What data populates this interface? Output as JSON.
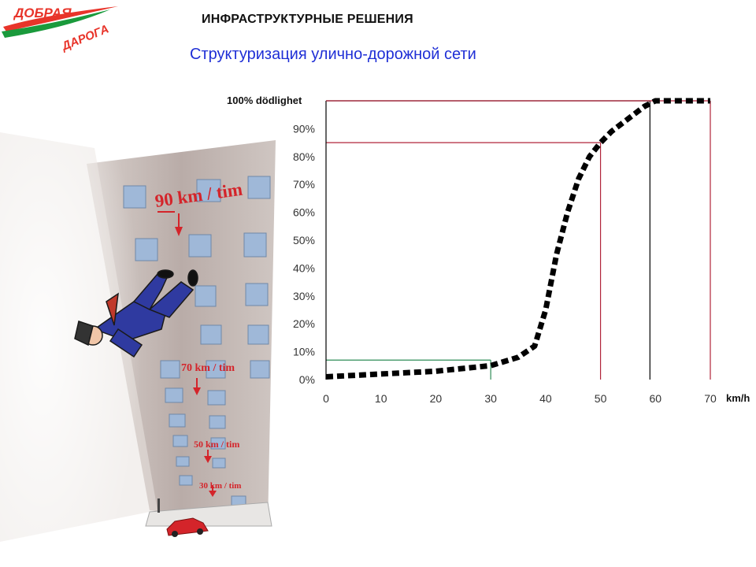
{
  "header": {
    "logo_line1": "ДОБРАЯ",
    "logo_line2": "ДАРОГА",
    "title": "ИНФРАСТРУКТУРНЫЕ РЕШЕНИЯ",
    "subtitle": "Структуризация улично-дорожной сети"
  },
  "illustration": {
    "speed_labels": [
      "90 km / tim",
      "70 km / tim",
      "50 km / tim",
      "30 km / tim"
    ]
  },
  "colors": {
    "brand_red": "#e8342a",
    "brand_green": "#1a9a3c",
    "subtitle_blue": "#1f2fd6",
    "ref_red": "#b0243a",
    "ref_green": "#2e8b57",
    "curve": "#000000"
  },
  "chart_data": {
    "type": "line",
    "ylabel": "100% dödlighet",
    "xlabel": "km/h",
    "x_ticks": [
      "0",
      "10",
      "20",
      "30",
      "40",
      "50",
      "60",
      "70"
    ],
    "y_ticks": [
      "0%",
      "10%",
      "20%",
      "30%",
      "40%",
      "50%",
      "60%",
      "70%",
      "80%",
      "90%"
    ],
    "xlim": [
      0,
      70
    ],
    "ylim": [
      0,
      100
    ],
    "grid": false,
    "series": [
      {
        "style": "dashed",
        "x": [
          0,
          10,
          20,
          30,
          35,
          38,
          40,
          42,
          44,
          46,
          48,
          50,
          52,
          54,
          56,
          58,
          60,
          65,
          70
        ],
        "y": [
          1,
          2,
          3,
          5,
          8,
          12,
          25,
          45,
          60,
          72,
          80,
          85,
          89,
          92,
          95,
          98,
          100,
          100,
          100
        ]
      }
    ],
    "reference_lines": [
      {
        "x": 30,
        "y": 7,
        "color": "green"
      },
      {
        "x": 50,
        "y": 85,
        "color": "red"
      },
      {
        "x": 59,
        "y": 100,
        "color": "black"
      }
    ]
  }
}
